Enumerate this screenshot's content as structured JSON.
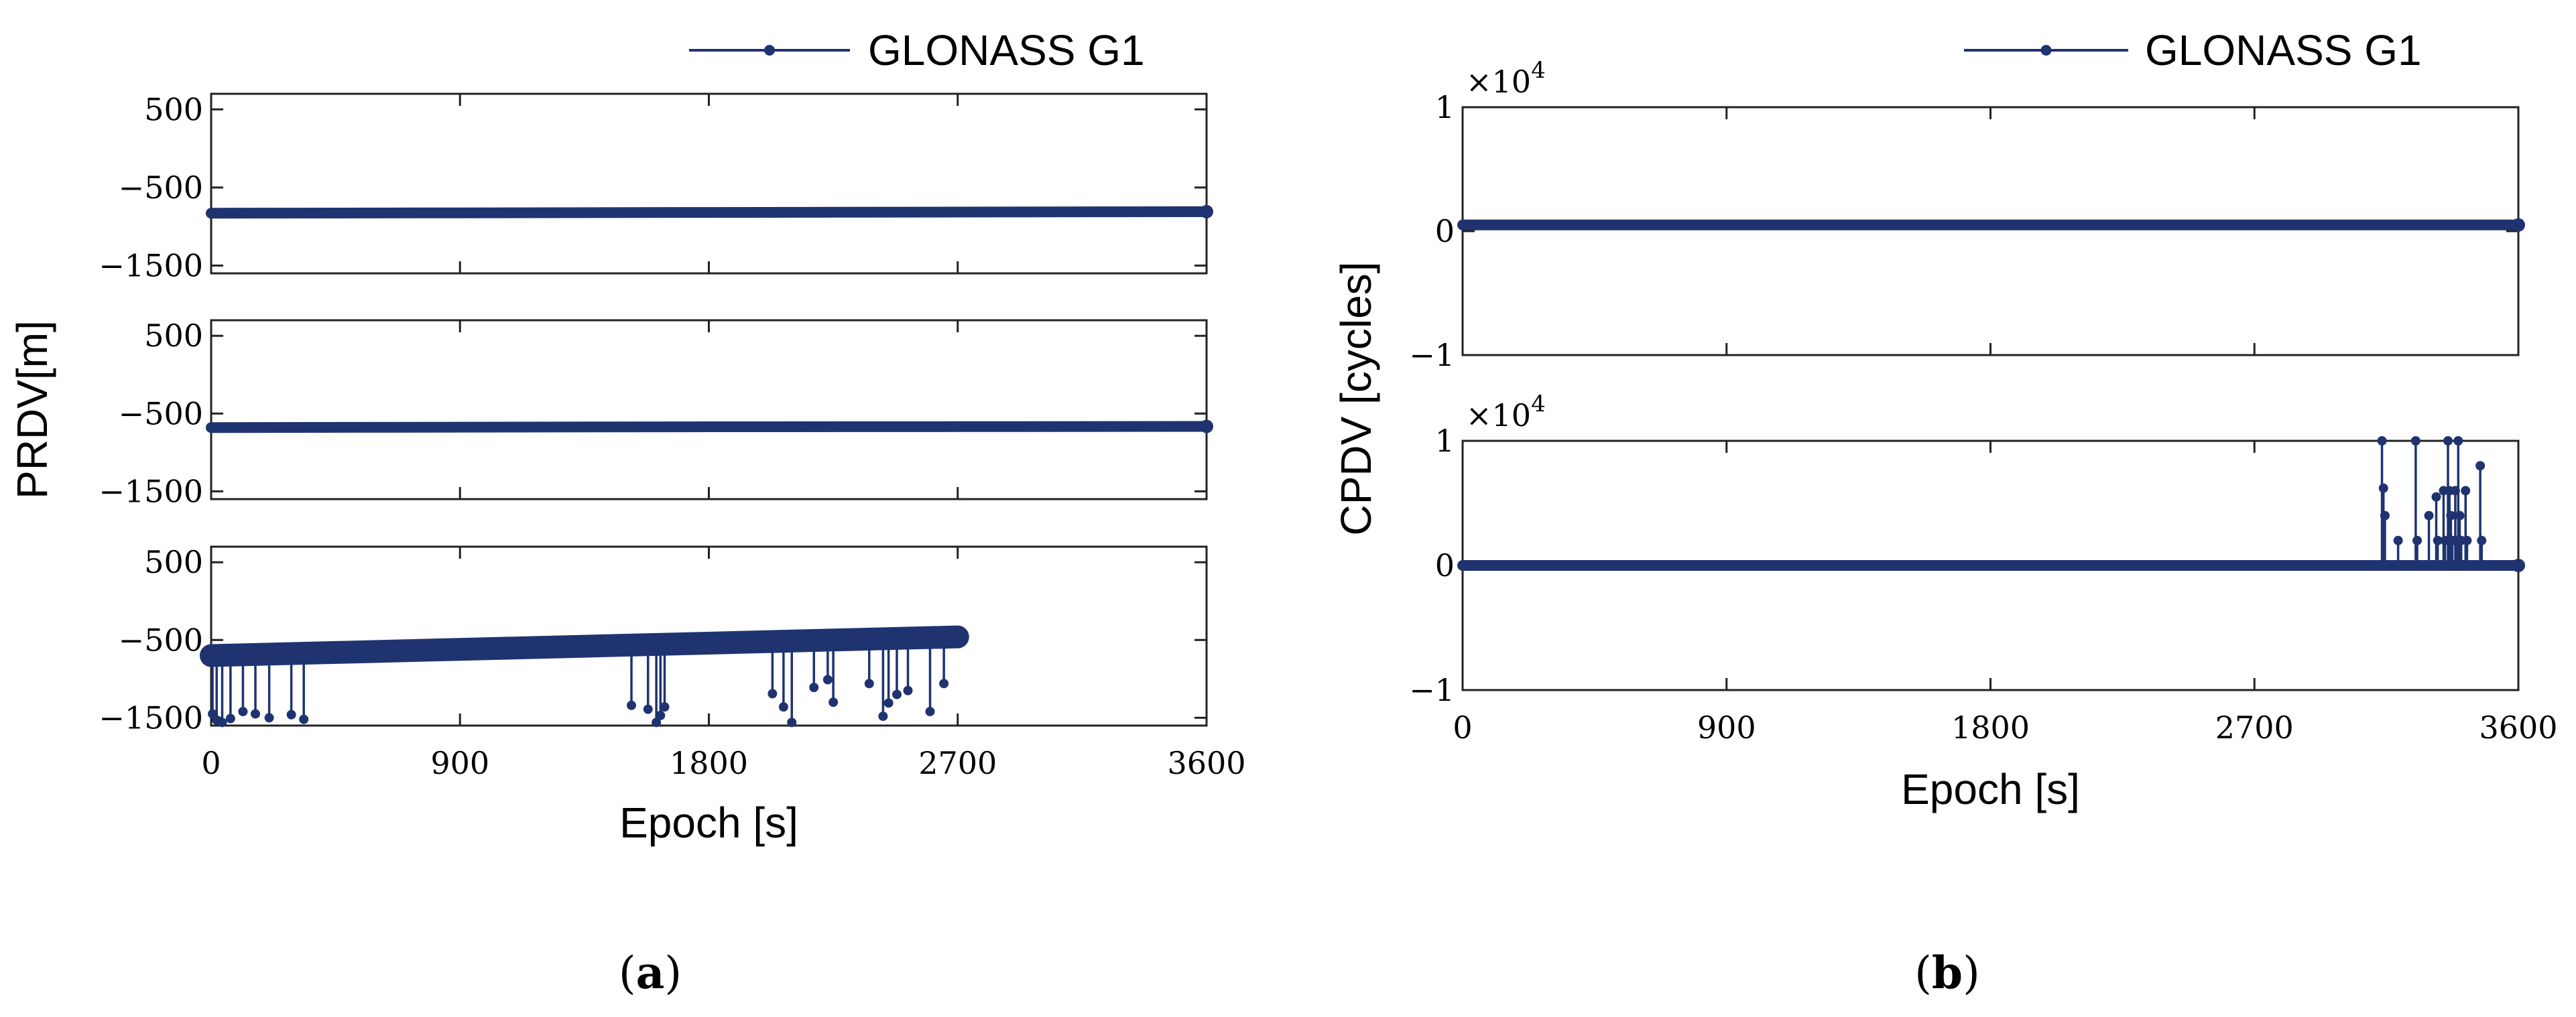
{
  "chart_data": [
    {
      "type": "line",
      "panel_label": "a",
      "legend": "GLONASS G1",
      "ylabel": "PRDV[m]",
      "xlabel": "Epoch [s]",
      "xlim": [
        0,
        3600
      ],
      "xticks": [
        0,
        900,
        1800,
        2700,
        3600
      ],
      "xticklabels": [
        "0",
        "900",
        "1800",
        "2700",
        "3600"
      ],
      "color": "#1f3370",
      "subplots": [
        {
          "ylim": [
            -1600,
            700
          ],
          "yticks": [
            500,
            -500,
            -1500
          ],
          "yticklabels": [
            "500",
            "−500",
            "−1500"
          ],
          "series": [
            {
              "name": "GLONASS G1",
              "x": [
                0,
                900,
                1800,
                2700,
                3600
              ],
              "y": [
                -830,
                -825,
                -820,
                -815,
                -810
              ]
            }
          ],
          "spikes": []
        },
        {
          "ylim": [
            -1600,
            700
          ],
          "yticks": [
            500,
            -500,
            -1500
          ],
          "yticklabels": [
            "500",
            "−500",
            "−1500"
          ],
          "series": [
            {
              "name": "GLONASS G1",
              "x": [
                0,
                900,
                1800,
                2700,
                3600
              ],
              "y": [
                -680,
                -675,
                -670,
                -668,
                -665
              ]
            }
          ],
          "spikes": []
        },
        {
          "ylim": [
            -1600,
            700
          ],
          "yticks": [
            500,
            -500,
            -1500
          ],
          "yticklabels": [
            "500",
            "−500",
            "−1500"
          ],
          "series": [
            {
              "name": "GLONASS G1",
              "x": [
                0,
                450,
                900,
                1350,
                1800,
                2250,
                2700
              ],
              "y": [
                -700,
                -660,
                -620,
                -580,
                -540,
                -500,
                -460
              ]
            }
          ],
          "spikes": [
            {
              "x": 5,
              "y": -1450
            },
            {
              "x": 20,
              "y": -1530
            },
            {
              "x": 40,
              "y": -1560
            },
            {
              "x": 70,
              "y": -1510
            },
            {
              "x": 115,
              "y": -1420
            },
            {
              "x": 160,
              "y": -1450
            },
            {
              "x": 210,
              "y": -1500
            },
            {
              "x": 290,
              "y": -1460
            },
            {
              "x": 335,
              "y": -1520
            },
            {
              "x": 1520,
              "y": -1340
            },
            {
              "x": 1580,
              "y": -1390
            },
            {
              "x": 1610,
              "y": -1560
            },
            {
              "x": 1625,
              "y": -1470
            },
            {
              "x": 1640,
              "y": -1360
            },
            {
              "x": 2030,
              "y": -1190
            },
            {
              "x": 2070,
              "y": -1360
            },
            {
              "x": 2100,
              "y": -1560
            },
            {
              "x": 2180,
              "y": -1110
            },
            {
              "x": 2230,
              "y": -1010
            },
            {
              "x": 2250,
              "y": -1300
            },
            {
              "x": 2380,
              "y": -1060
            },
            {
              "x": 2430,
              "y": -1480
            },
            {
              "x": 2450,
              "y": -1310
            },
            {
              "x": 2480,
              "y": -1200
            },
            {
              "x": 2520,
              "y": -1150
            },
            {
              "x": 2600,
              "y": -1420
            },
            {
              "x": 2650,
              "y": -1060
            }
          ]
        }
      ]
    },
    {
      "type": "line",
      "panel_label": "b",
      "legend": "GLONASS G1",
      "ylabel": "CPDV [cycles]",
      "xlabel": "Epoch [s]",
      "xlim": [
        0,
        3600
      ],
      "xticks": [
        0,
        900,
        1800,
        2700,
        3600
      ],
      "xticklabels": [
        "0",
        "900",
        "1800",
        "2700",
        "3600"
      ],
      "color": "#1f3370",
      "subplots": [
        {
          "ylim": [
            -1,
            1
          ],
          "yticks": [
            1,
            0,
            -1
          ],
          "yticklabels": [
            "1",
            "0",
            "−1"
          ],
          "exponent_base": "×10",
          "exponent_power": "4",
          "series": [
            {
              "name": "GLONASS G1",
              "x": [
                0,
                3600
              ],
              "y": [
                0.05,
                0.05
              ]
            }
          ],
          "spikes": []
        },
        {
          "ylim": [
            -1,
            1
          ],
          "yticks": [
            1,
            0,
            -1
          ],
          "yticklabels": [
            "1",
            "0",
            "−1"
          ],
          "exponent_base": "×10",
          "exponent_power": "4",
          "series": [
            {
              "name": "GLONASS G1",
              "x": [
                0,
                3600
              ],
              "y": [
                0,
                0
              ]
            }
          ],
          "spikes": [
            {
              "x": 3135,
              "y": 1.0
            },
            {
              "x": 3140,
              "y": 0.62
            },
            {
              "x": 3145,
              "y": 0.4
            },
            {
              "x": 3190,
              "y": 0.2
            },
            {
              "x": 3250,
              "y": 1.0
            },
            {
              "x": 3255,
              "y": 0.2
            },
            {
              "x": 3295,
              "y": 0.4
            },
            {
              "x": 3320,
              "y": 0.55
            },
            {
              "x": 3325,
              "y": 0.2
            },
            {
              "x": 3345,
              "y": 0.6
            },
            {
              "x": 3350,
              "y": 0.2
            },
            {
              "x": 3360,
              "y": 1.0
            },
            {
              "x": 3365,
              "y": 0.6
            },
            {
              "x": 3370,
              "y": 0.4
            },
            {
              "x": 3375,
              "y": 0.2
            },
            {
              "x": 3385,
              "y": 0.6
            },
            {
              "x": 3390,
              "y": 0.2
            },
            {
              "x": 3395,
              "y": 1.0
            },
            {
              "x": 3400,
              "y": 0.4
            },
            {
              "x": 3405,
              "y": 0.2
            },
            {
              "x": 3420,
              "y": 0.6
            },
            {
              "x": 3425,
              "y": 0.2
            },
            {
              "x": 3470,
              "y": 0.8
            },
            {
              "x": 3475,
              "y": 0.2
            }
          ]
        }
      ]
    }
  ],
  "captions": {
    "a": "a",
    "b": "b"
  }
}
